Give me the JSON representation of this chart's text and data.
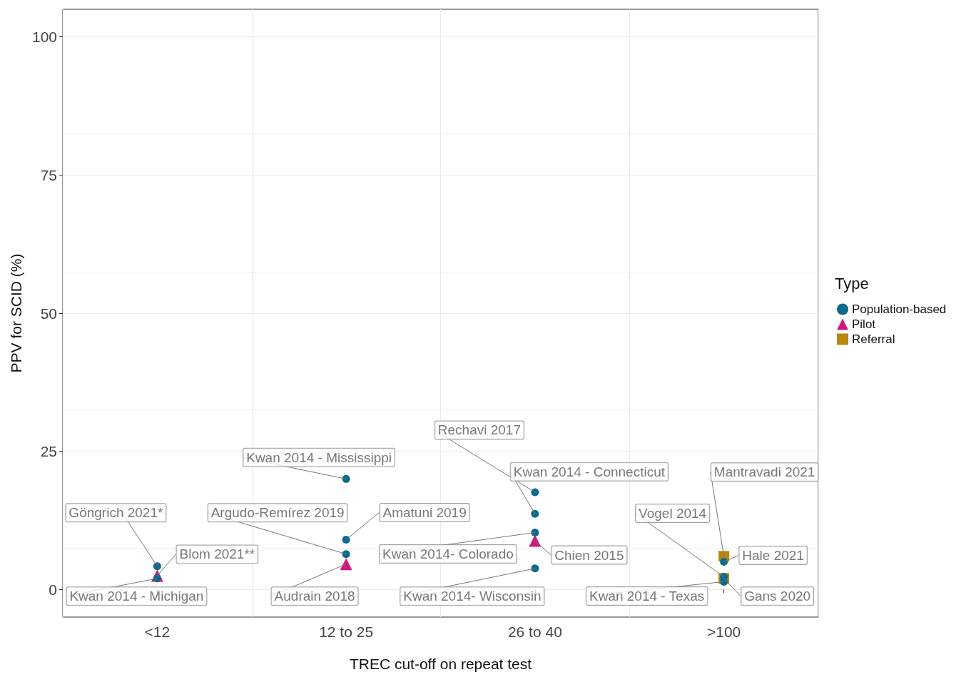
{
  "chart_data": {
    "type": "scatter",
    "xlabel": "TREC cut-off on repeat test",
    "ylabel": "PPV for SCID (%)",
    "legend_title": "Type",
    "legend": "right",
    "grid": true,
    "categories": [
      "<12",
      "12 to 25",
      "26 to 40",
      ">100"
    ],
    "ylim": [
      -5,
      105
    ],
    "yticks": [
      0,
      25,
      50,
      75,
      100
    ],
    "series": [
      {
        "name": "Population-based",
        "color": "#0e6a8c",
        "marker": "circle",
        "x": [
          "<12",
          "<12",
          "12 to 25",
          "12 to 25",
          "12 to 25",
          "26 to 40",
          "26 to 40",
          "26 to 40",
          "26 to 40",
          ">100",
          ">100",
          ">100"
        ],
        "values": [
          4.2,
          2.0,
          20,
          9.0,
          6.4,
          17.6,
          13.7,
          10.3,
          3.8,
          5.0,
          2.3,
          1.4
        ]
      },
      {
        "name": "Pilot",
        "color": "#d0187c",
        "marker": "triangle",
        "x": [
          "<12",
          "12 to 25",
          "26 to 40"
        ],
        "values": [
          2.5,
          4.6,
          8.8
        ]
      },
      {
        "name": "Referral",
        "color": "#b8860b",
        "marker": "square",
        "x": [
          ">100",
          ">100"
        ],
        "values": [
          6.0,
          2.0
        ]
      }
    ],
    "annotations": [
      {
        "text": "Göngrich 2021*",
        "x": "<12",
        "y": 4.2
      },
      {
        "text": "Kwan 2014 - Michigan",
        "x": "<12",
        "y": 2.0
      },
      {
        "text": "Blom 2021**",
        "x": "<12",
        "y": 2.5
      },
      {
        "text": "Kwan 2014 - Mississippi",
        "x": "12 to 25",
        "y": 20
      },
      {
        "text": "Amatuni 2019",
        "x": "12 to 25",
        "y": 9.0
      },
      {
        "text": "Argudo-Remírez 2019",
        "x": "12 to 25",
        "y": 6.4
      },
      {
        "text": "Audrain 2018",
        "x": "12 to 25",
        "y": 4.6
      },
      {
        "text": "Rechavi 2017",
        "x": "26 to 40",
        "y": 17.6
      },
      {
        "text": "Kwan 2014 - Connecticut",
        "x": "26 to 40",
        "y": 13.7
      },
      {
        "text": "Kwan 2014- Colorado",
        "x": "26 to 40",
        "y": 10.3
      },
      {
        "text": "Chien 2015",
        "x": "26 to 40",
        "y": 8.8
      },
      {
        "text": "Kwan 2014- Wisconsin",
        "x": "26 to 40",
        "y": 3.8
      },
      {
        "text": "Mantravadi 2021",
        "x": ">100",
        "y": 6.0
      },
      {
        "text": "Hale 2021",
        "x": ">100",
        "y": 5.0
      },
      {
        "text": "Vogel 2014",
        "x": ">100",
        "y": 2.3
      },
      {
        "text": "Kwan 2014 - Texas",
        "x": ">100",
        "y": 1.4
      },
      {
        "text": "Gans 2020",
        "x": ">100",
        "y": 2.0
      }
    ]
  }
}
